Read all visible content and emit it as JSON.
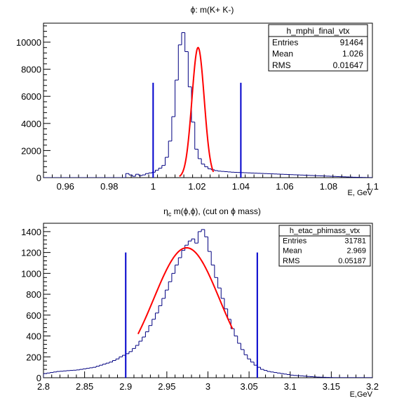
{
  "chart_data": [
    {
      "type": "bar",
      "style": "step-histogram with red fit curve and blue vertical cut lines",
      "title_prefix": "ϕ",
      "title_rest": ": m(K+ K-)",
      "xlabel": "E, GeV",
      "ylabel": "",
      "xlim": [
        0.95,
        1.1
      ],
      "ylim": [
        0,
        11400
      ],
      "x_ticks": [
        "0.96",
        "0.98",
        "1",
        "1.02",
        "1.04",
        "1.06",
        "1.08",
        "1.1"
      ],
      "y_ticks": [
        "0",
        "2000",
        "4000",
        "6000",
        "8000",
        "10000"
      ],
      "grid": false,
      "stats_box": {
        "position": "top-right",
        "name": "h_mphi_final_vtx",
        "rows": [
          {
            "label": "Entries",
            "value": "91464"
          },
          {
            "label": "Mean",
            "value": "1.026"
          },
          {
            "label": "RMS",
            "value": "0.01647"
          }
        ]
      },
      "histogram": {
        "bin_width": 0.0015,
        "x_start": 0.95,
        "values": [
          0,
          0,
          0,
          0,
          0,
          0,
          0,
          0,
          0,
          0,
          0,
          0,
          0,
          0,
          0,
          0,
          0,
          0,
          0,
          0,
          0,
          0,
          0,
          0,
          0,
          300,
          200,
          100,
          250,
          150,
          200,
          300,
          350,
          400,
          550,
          700,
          900,
          1500,
          2700,
          4500,
          7200,
          9800,
          10700,
          9300,
          6700,
          4100,
          2100,
          1400,
          1000,
          800,
          650,
          580,
          520,
          480,
          460,
          440,
          420,
          400,
          390,
          380,
          370,
          360,
          350,
          340,
          330,
          320,
          310,
          300,
          290,
          280,
          270,
          260,
          250,
          240,
          230,
          220,
          210,
          200,
          190,
          180,
          170,
          160,
          150,
          140,
          130,
          120,
          110,
          100,
          90,
          80,
          70,
          60,
          50,
          40,
          30,
          25,
          20,
          15,
          10,
          5
        ]
      },
      "fit": {
        "type": "gaussian",
        "mean": 1.0205,
        "sigma": 0.0028,
        "amplitude": 9600,
        "x_range": [
          1.012,
          1.0275
        ]
      },
      "cut_lines": [
        {
          "x": 1.0,
          "y_top": 7000
        },
        {
          "x": 1.04,
          "y_top": 7000
        }
      ],
      "series_colors": {
        "histogram": "#000080",
        "fit": "#ff0000",
        "cuts": "#0000cc"
      }
    },
    {
      "type": "bar",
      "style": "step-histogram with red fit curve and blue vertical cut lines",
      "title_prefix": "η",
      "title_sub": "c",
      "title_rest": " m(ϕ,ϕ), (cut on ϕ mass)",
      "xlabel": "E,GeV",
      "ylabel": "",
      "xlim": [
        2.8,
        3.2
      ],
      "ylim": [
        0,
        1480
      ],
      "x_ticks": [
        "2.8",
        "2.85",
        "2.9",
        "2.95",
        "3",
        "3.05",
        "3.1",
        "3.15",
        "3.2"
      ],
      "y_ticks": [
        "0",
        "200",
        "400",
        "600",
        "800",
        "1000",
        "1200",
        "1400"
      ],
      "grid": false,
      "stats_box": {
        "position": "top-right",
        "name": "h_etac_phimass_vtx",
        "rows": [
          {
            "label": "Entries",
            "value": "31781"
          },
          {
            "label": "Mean",
            "value": "2.969"
          },
          {
            "label": "RMS",
            "value": "0.05187"
          }
        ]
      },
      "histogram": {
        "bin_width": 0.004,
        "x_start": 2.8,
        "values": [
          40,
          45,
          50,
          55,
          60,
          62,
          65,
          68,
          70,
          72,
          75,
          80,
          85,
          90,
          95,
          100,
          110,
          120,
          130,
          140,
          150,
          165,
          180,
          200,
          215,
          230,
          250,
          280,
          310,
          350,
          390,
          440,
          500,
          560,
          620,
          690,
          760,
          840,
          920,
          1000,
          1080,
          1150,
          1220,
          1270,
          1310,
          1330,
          1290,
          1400,
          1420,
          1350,
          1210,
          1080,
          960,
          860,
          760,
          660,
          560,
          470,
          400,
          330,
          270,
          220,
          180,
          150,
          120,
          100,
          80,
          70,
          60,
          55,
          50,
          45,
          40,
          35,
          30,
          25,
          22,
          20,
          18,
          15,
          12,
          10,
          8,
          6,
          5,
          4,
          3,
          2,
          1,
          1,
          1,
          1,
          1,
          1,
          1,
          1,
          1,
          1,
          1,
          1
        ]
      },
      "fit": {
        "type": "gaussian",
        "mean": 2.974,
        "sigma": 0.04,
        "amplitude": 1245,
        "x_range": [
          2.915,
          3.03
        ]
      },
      "cut_lines": [
        {
          "x": 2.9,
          "y_top": 1200
        },
        {
          "x": 3.06,
          "y_top": 1200
        }
      ],
      "series_colors": {
        "histogram": "#000080",
        "fit": "#ff0000",
        "cuts": "#0000cc"
      }
    }
  ]
}
